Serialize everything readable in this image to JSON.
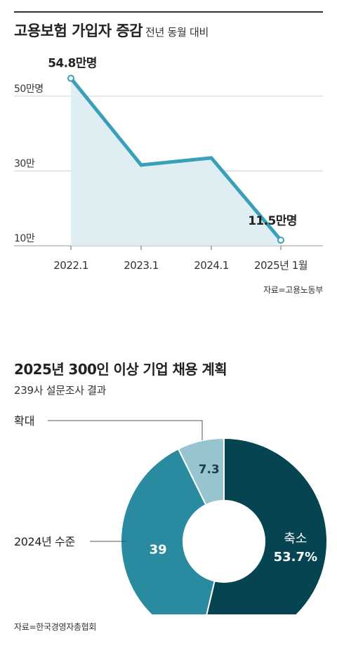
{
  "line_chart": {
    "title": "고용보험 가입자 증감",
    "subtitle": "전년 동월 대비",
    "source": "자료=고용노동부"
  },
  "donut_chart": {
    "title": "2025년 300인 이상 기업 채용 계획",
    "subtitle": "239사 설문조사 결과",
    "source": "자료=한국경영자총협회"
  },
  "colors": {
    "line": "#3a9fb8",
    "area": "#deeef3",
    "grid": "#cfcfcf",
    "slice_shrink": "#064452",
    "slice_same": "#2a8aa0",
    "slice_expand": "#96c4cf"
  },
  "chart_data": [
    {
      "type": "area",
      "title": "고용보험 가입자 증감",
      "subtitle": "전년 동월 대비",
      "categories": [
        "2022.1",
        "2023.1",
        "2024.1",
        "2025년 1월"
      ],
      "values": [
        54.8,
        31.6,
        33.5,
        11.5
      ],
      "unit": "만명",
      "value_labels": [
        "54.8만명",
        "",
        "",
        "11.5만명"
      ],
      "y_ticks": [
        10,
        30,
        50
      ],
      "y_tick_labels": [
        "10만",
        "30만",
        "50만명"
      ],
      "ylim": [
        10,
        60
      ],
      "grid": true
    },
    {
      "type": "pie",
      "title": "2025년 300인 이상 기업 채용 계획",
      "subtitle": "239사 설문조사 결과",
      "donut": true,
      "slices": [
        {
          "label": "축소",
          "value": 53.7,
          "display": "53.7%"
        },
        {
          "label": "2024년 수준",
          "value": 39,
          "display": "39"
        },
        {
          "label": "확대",
          "value": 7.3,
          "display": "7.3"
        }
      ]
    }
  ]
}
